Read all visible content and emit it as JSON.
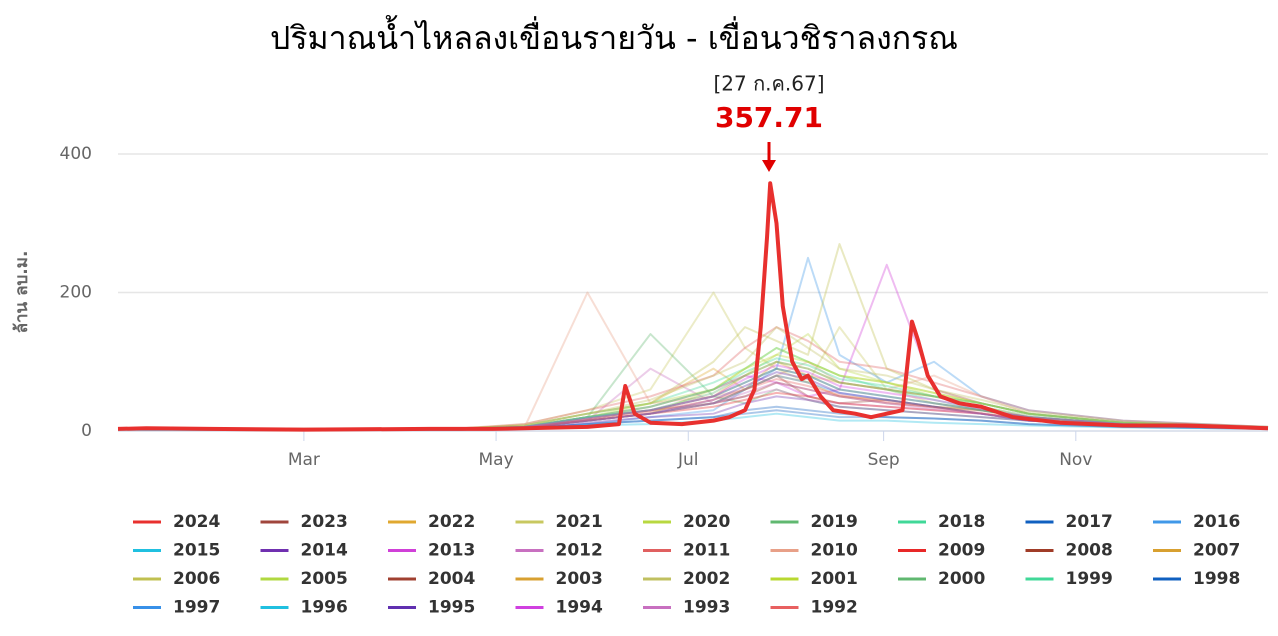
{
  "chart_data": {
    "type": "line",
    "title": "ปริมาณน้ำไหลลงเขื่อนรายวัน - เขื่อนวชิราลงกรณ",
    "y_label": "ล้าน ลบ.ม.",
    "annotation": {
      "date": "[27 ก.ค.67]",
      "value": "357.71"
    },
    "xlim": [
      1,
      366
    ],
    "xticks": [
      {
        "value": 60,
        "label": "Mar"
      },
      {
        "value": 121,
        "label": "May"
      },
      {
        "value": 182,
        "label": "Jul"
      },
      {
        "value": 244,
        "label": "Sep"
      },
      {
        "value": 305,
        "label": "Nov"
      }
    ],
    "ylim": [
      0,
      400
    ],
    "yticks": [
      0,
      200,
      400
    ],
    "grid": true,
    "x": [
      1,
      60,
      110,
      130,
      150,
      170,
      190,
      200,
      210,
      220,
      230,
      245,
      260,
      275,
      290,
      320,
      366
    ],
    "series": [
      {
        "name": "2023",
        "color": "#a0463c",
        "values": [
          3,
          2,
          3,
          5,
          20,
          30,
          40,
          60,
          80,
          50,
          40,
          45,
          35,
          30,
          20,
          10,
          5
        ]
      },
      {
        "name": "2022",
        "color": "#e0a830",
        "values": [
          4,
          3,
          4,
          8,
          25,
          40,
          90,
          60,
          100,
          80,
          70,
          60,
          50,
          40,
          25,
          12,
          6
        ]
      },
      {
        "name": "2021",
        "color": "#c8c860",
        "values": [
          3,
          2,
          3,
          10,
          30,
          60,
          200,
          120,
          90,
          70,
          150,
          60,
          40,
          30,
          20,
          10,
          5
        ]
      },
      {
        "name": "2020",
        "color": "#b8d840",
        "values": [
          2,
          2,
          2,
          5,
          15,
          25,
          60,
          80,
          110,
          140,
          90,
          70,
          50,
          40,
          25,
          12,
          4
        ]
      },
      {
        "name": "2019",
        "color": "#60b870",
        "values": [
          3,
          2,
          3,
          6,
          20,
          140,
          50,
          40,
          60,
          45,
          35,
          30,
          25,
          20,
          15,
          8,
          4
        ]
      },
      {
        "name": "2018",
        "color": "#40d898",
        "values": [
          4,
          3,
          3,
          8,
          25,
          40,
          70,
          90,
          120,
          100,
          80,
          60,
          45,
          30,
          20,
          10,
          5
        ]
      },
      {
        "name": "2017",
        "color": "#1060c0",
        "values": [
          3,
          2,
          2,
          4,
          10,
          15,
          20,
          25,
          30,
          25,
          20,
          20,
          18,
          15,
          10,
          6,
          3
        ]
      },
      {
        "name": "2016",
        "color": "#4098e8",
        "values": [
          2,
          2,
          2,
          4,
          10,
          20,
          30,
          60,
          90,
          250,
          110,
          70,
          100,
          50,
          30,
          15,
          6
        ]
      },
      {
        "name": "2015",
        "color": "#20c0e0",
        "values": [
          2,
          1,
          2,
          3,
          8,
          10,
          15,
          20,
          25,
          20,
          15,
          15,
          12,
          10,
          8,
          5,
          3
        ]
      },
      {
        "name": "2014",
        "color": "#7030b0",
        "values": [
          3,
          2,
          2,
          4,
          12,
          20,
          25,
          40,
          50,
          45,
          35,
          30,
          25,
          20,
          15,
          8,
          4
        ]
      },
      {
        "name": "2013",
        "color": "#d040d8",
        "values": [
          3,
          2,
          3,
          6,
          20,
          35,
          60,
          80,
          70,
          50,
          60,
          240,
          60,
          40,
          25,
          12,
          5
        ]
      },
      {
        "name": "2012",
        "color": "#c870c0",
        "values": [
          3,
          2,
          3,
          5,
          15,
          90,
          40,
          50,
          60,
          45,
          40,
          35,
          30,
          25,
          15,
          8,
          4
        ]
      },
      {
        "name": "2011",
        "color": "#e06060",
        "values": [
          4,
          3,
          4,
          10,
          30,
          50,
          80,
          120,
          150,
          130,
          100,
          90,
          70,
          50,
          30,
          15,
          6
        ]
      },
      {
        "name": "2010",
        "color": "#e8a088",
        "values": [
          3,
          2,
          3,
          5,
          200,
          40,
          50,
          60,
          80,
          100,
          70,
          60,
          80,
          50,
          25,
          12,
          5
        ]
      },
      {
        "name": "2009",
        "color": "#e82828",
        "values": [
          3,
          2,
          3,
          5,
          15,
          25,
          35,
          45,
          55,
          50,
          40,
          35,
          30,
          25,
          18,
          8,
          4
        ]
      },
      {
        "name": "2008",
        "color": "#a03c28",
        "values": [
          3,
          2,
          3,
          6,
          18,
          30,
          50,
          70,
          90,
          80,
          60,
          50,
          40,
          30,
          20,
          10,
          5
        ]
      },
      {
        "name": "2007",
        "color": "#d8a030",
        "values": [
          3,
          2,
          3,
          5,
          15,
          25,
          40,
          60,
          80,
          70,
          50,
          45,
          35,
          30,
          18,
          9,
          4
        ]
      },
      {
        "name": "2006",
        "color": "#c0c050",
        "values": [
          4,
          3,
          4,
          8,
          25,
          40,
          100,
          150,
          130,
          110,
          270,
          90,
          60,
          40,
          25,
          12,
          5
        ]
      },
      {
        "name": "2005",
        "color": "#b0d840",
        "values": [
          3,
          2,
          3,
          6,
          20,
          40,
          60,
          90,
          120,
          100,
          80,
          70,
          55,
          40,
          25,
          12,
          5
        ]
      },
      {
        "name": "2004",
        "color": "#a04030",
        "values": [
          3,
          2,
          3,
          5,
          15,
          25,
          40,
          50,
          70,
          60,
          50,
          40,
          35,
          25,
          15,
          8,
          4
        ]
      },
      {
        "name": "2003",
        "color": "#d8a030",
        "values": [
          3,
          2,
          3,
          6,
          20,
          30,
          50,
          80,
          100,
          90,
          70,
          60,
          50,
          35,
          20,
          10,
          5
        ]
      },
      {
        "name": "2002",
        "color": "#c0c060",
        "values": [
          4,
          3,
          4,
          8,
          25,
          45,
          80,
          100,
          150,
          120,
          90,
          80,
          60,
          45,
          28,
          14,
          6
        ]
      },
      {
        "name": "2001",
        "color": "#b8d830",
        "values": [
          3,
          2,
          3,
          6,
          20,
          35,
          60,
          90,
          110,
          100,
          80,
          70,
          55,
          40,
          25,
          12,
          5
        ]
      },
      {
        "name": "2000",
        "color": "#60b870",
        "values": [
          3,
          2,
          3,
          6,
          18,
          30,
          55,
          80,
          100,
          90,
          70,
          60,
          50,
          35,
          22,
          10,
          5
        ]
      },
      {
        "name": "1999",
        "color": "#40d898",
        "values": [
          3,
          2,
          3,
          6,
          20,
          35,
          60,
          85,
          105,
          95,
          75,
          65,
          50,
          40,
          25,
          12,
          5
        ]
      },
      {
        "name": "1998",
        "color": "#1060c0",
        "values": [
          2,
          2,
          2,
          4,
          10,
          15,
          20,
          30,
          35,
          30,
          25,
          20,
          18,
          15,
          10,
          6,
          3
        ]
      },
      {
        "name": "1997",
        "color": "#3890e8",
        "values": [
          3,
          2,
          3,
          5,
          15,
          25,
          40,
          60,
          80,
          70,
          55,
          45,
          35,
          25,
          15,
          8,
          4
        ]
      },
      {
        "name": "1996",
        "color": "#20c0e0",
        "values": [
          3,
          2,
          3,
          6,
          20,
          30,
          50,
          70,
          90,
          80,
          60,
          50,
          40,
          30,
          20,
          10,
          5
        ]
      },
      {
        "name": "1995",
        "color": "#6030b0",
        "values": [
          3,
          2,
          3,
          5,
          15,
          25,
          45,
          65,
          85,
          75,
          55,
          45,
          35,
          25,
          15,
          8,
          4
        ]
      },
      {
        "name": "1994",
        "color": "#d040e0",
        "values": [
          3,
          2,
          3,
          6,
          18,
          30,
          50,
          75,
          95,
          85,
          65,
          55,
          45,
          32,
          20,
          10,
          5
        ]
      },
      {
        "name": "1993",
        "color": "#c870c0",
        "values": [
          3,
          2,
          3,
          5,
          15,
          25,
          40,
          55,
          70,
          60,
          50,
          40,
          32,
          25,
          15,
          8,
          4
        ]
      },
      {
        "name": "1992",
        "color": "#e86060",
        "values": [
          3,
          2,
          3,
          5,
          16,
          28,
          45,
          60,
          75,
          65,
          52,
          42,
          34,
          26,
          16,
          8,
          4
        ]
      },
      {
        "name": "2024",
        "color": "#e8302e",
        "x": [
          1,
          10,
          30,
          60,
          100,
          120,
          150,
          160,
          162,
          165,
          170,
          180,
          190,
          195,
          200,
          203,
          205,
          207,
          208,
          210,
          212,
          215,
          218,
          220,
          224,
          228,
          235,
          240,
          245,
          250,
          253,
          255,
          258,
          262,
          268,
          275,
          285,
          300,
          320,
          340,
          366
        ],
        "values": [
          3,
          4,
          3,
          2,
          3,
          3,
          6,
          10,
          65,
          25,
          12,
          10,
          15,
          20,
          30,
          60,
          150,
          280,
          357.71,
          300,
          180,
          100,
          75,
          80,
          50,
          30,
          25,
          20,
          25,
          30,
          158,
          130,
          80,
          50,
          40,
          35,
          20,
          12,
          8,
          8,
          4
        ]
      }
    ]
  }
}
